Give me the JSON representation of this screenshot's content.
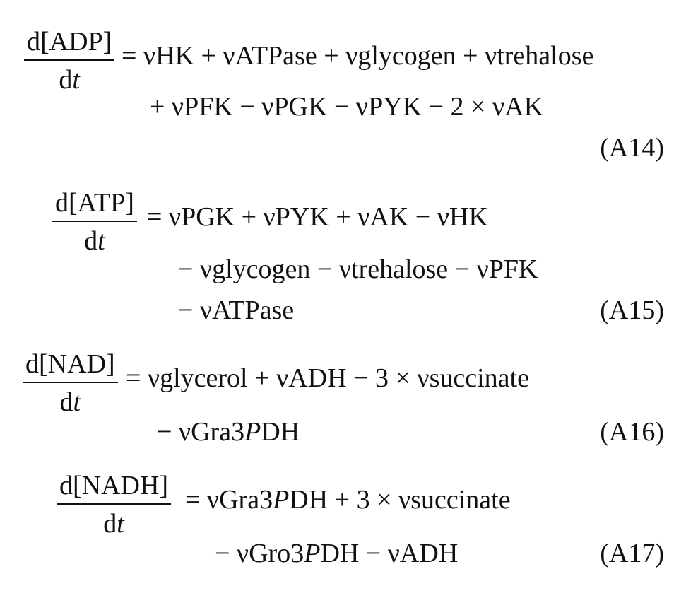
{
  "equations": [
    {
      "numerator": "d[ADP]",
      "denominator_d": "d",
      "denominator_var": "t",
      "lines": [
        "= νHK + νATPase + νglycogen + νtrehalose",
        "+ νPFK − νPGK − νPYK − 2 × νAK"
      ],
      "tag": "(A14)"
    },
    {
      "numerator": "d[ATP]",
      "denominator_d": "d",
      "denominator_var": "t",
      "lines": [
        "= νPGK + νPYK + νAK − νHK",
        "− νglycogen − νtrehalose − νPFK",
        "− νATPase"
      ],
      "tag": "(A15)"
    },
    {
      "numerator": "d[NAD]",
      "denominator_d": "d",
      "denominator_var": "t",
      "lines": [
        "= νglycerol + νADH − 3 × νsuccinate"
      ],
      "line2_pre": "− νGra3",
      "line2_italic": "P",
      "line2_post": "DH",
      "tag": "(A16)"
    },
    {
      "numerator": "d[NADH]",
      "denominator_d": "d",
      "denominator_var": "t",
      "line1_pre": "= νGra3",
      "line1_italic": "P",
      "line1_post": "DH + 3 × νsuccinate",
      "line2_pre": "− νGro3",
      "line2_italic": "P",
      "line2_post": "DH − νADH",
      "tag": "(A17)"
    }
  ]
}
